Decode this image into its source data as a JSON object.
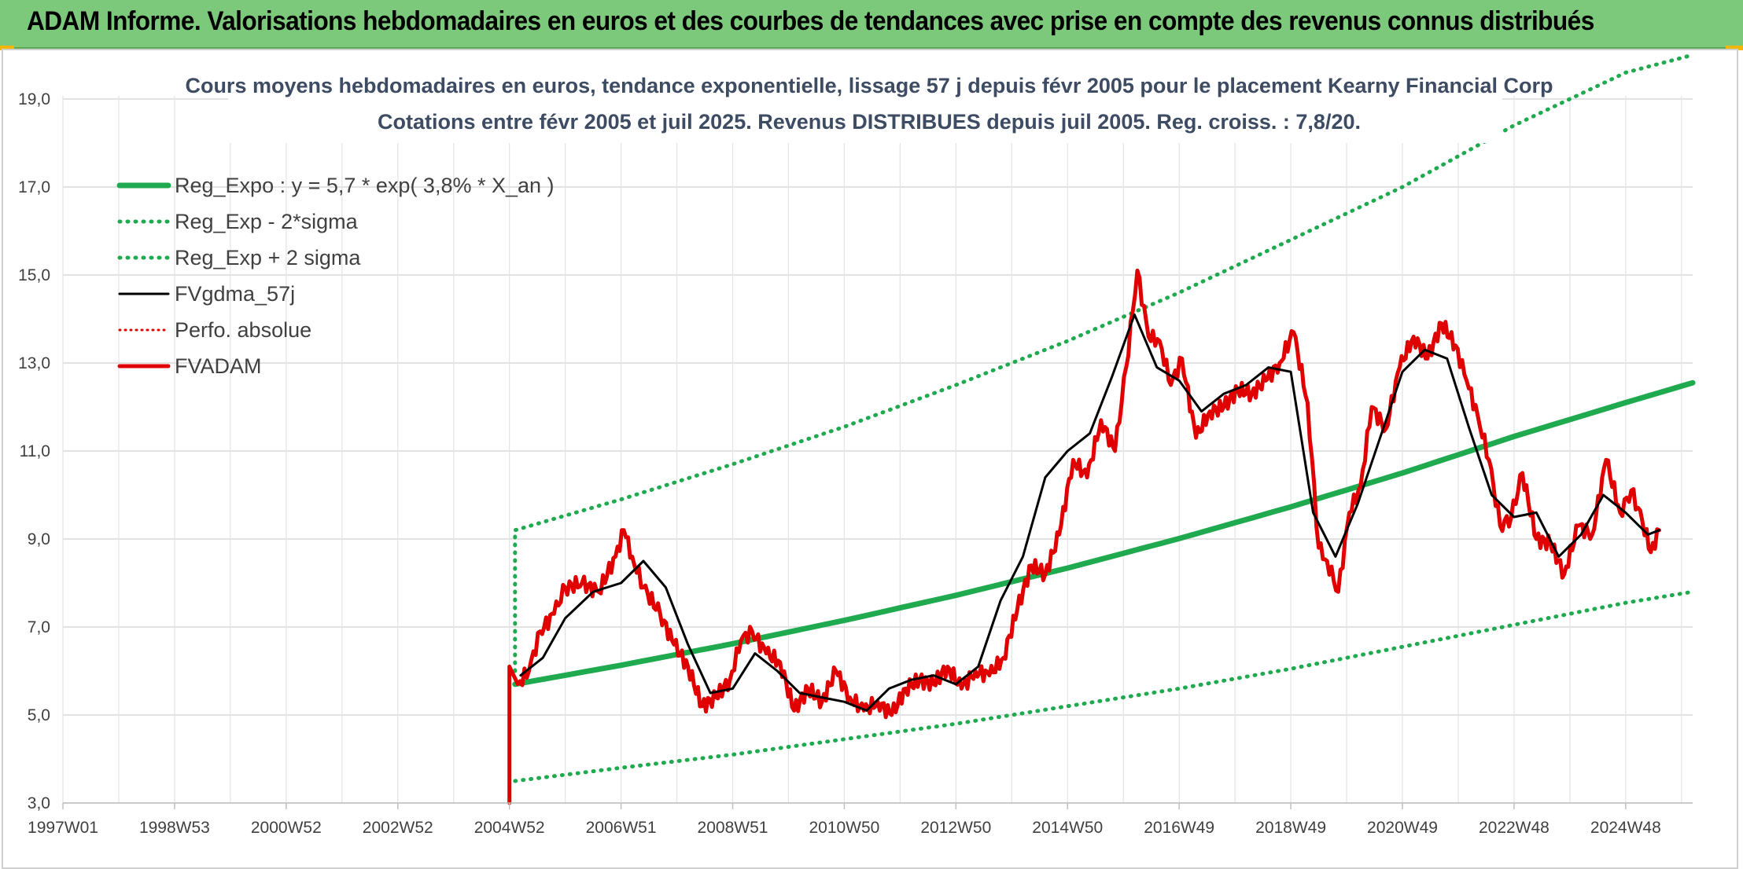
{
  "banner": {
    "title": "ADAM Informe. Valorisations hebdomadaires en euros et des courbes de tendances avec prise en compte des revenus connus distribués"
  },
  "colors": {
    "banner": "#7dc97b",
    "regression": "#1faa4f",
    "band": "#1faa4f",
    "smoothed": "#000000",
    "price": "#e00000",
    "perfo": "#e00000",
    "title": "#3d4b63"
  },
  "chart_data": {
    "type": "line",
    "title": "Cours moyens hebdomadaires en euros, tendance exponentielle, lissage 57 j depuis févr 2005 pour le placement Kearny Financial Corp",
    "subtitle": "Cotations entre févr 2005 et juil 2025. Revenus DISTRIBUES depuis juil 2005. Reg. croiss. : 7,8/20.",
    "xlabel": "",
    "ylabel": "",
    "ylim": [
      3,
      20
    ],
    "y_ticks": [
      "3,0",
      "5,0",
      "7,0",
      "9,0",
      "11,0",
      "13,0",
      "15,0",
      "17,0",
      "19,0"
    ],
    "x_ticks": [
      "1997W01",
      "1998W53",
      "2000W52",
      "2002W52",
      "2004W52",
      "2006W51",
      "2008W51",
      "2010W50",
      "2012W50",
      "2014W50",
      "2016W49",
      "2018W49",
      "2020W49",
      "2022W48",
      "2024W48"
    ],
    "x_tick_years": [
      1997.0,
      1999.0,
      2001.0,
      2003.0,
      2005.0,
      2007.0,
      2009.0,
      2011.0,
      2013.0,
      2015.0,
      2017.0,
      2019.0,
      2021.0,
      2023.0,
      2025.0
    ],
    "xlim": [
      1997.0,
      2026.2
    ],
    "grid": true,
    "legend_position": "top-left",
    "series": [
      {
        "name": "Reg_Expo : y = 5,7 * exp( 3,8% *  X_an )",
        "style": "solid-thick",
        "x": [
          2005.1,
          2007,
          2009,
          2011,
          2013,
          2015,
          2017,
          2019,
          2021,
          2023,
          2025,
          2026.2
        ],
        "y": [
          5.7,
          6.13,
          6.62,
          7.15,
          7.72,
          8.34,
          9.01,
          9.73,
          10.5,
          11.33,
          12.1,
          12.55
        ]
      },
      {
        "name": "Reg_Exp - 2*sigma",
        "style": "dotted",
        "x": [
          2005.1,
          2007,
          2009,
          2011,
          2013,
          2015,
          2017,
          2019,
          2021,
          2023,
          2025,
          2026.2
        ],
        "y": [
          3.5,
          3.8,
          4.1,
          4.45,
          4.8,
          5.2,
          5.6,
          6.05,
          6.55,
          7.05,
          7.55,
          7.8
        ]
      },
      {
        "name": "Reg_Exp + 2 sigma",
        "style": "dotted",
        "x": [
          2005.1,
          2005.1,
          2007,
          2009,
          2011,
          2013,
          2015,
          2017,
          2019,
          2021,
          2023,
          2025,
          2026.2
        ],
        "y": [
          6.0,
          9.2,
          9.9,
          10.7,
          11.55,
          12.5,
          13.5,
          14.6,
          15.8,
          17.0,
          18.4,
          19.6,
          20.0
        ]
      },
      {
        "name": "FVgdma_57j",
        "style": "solid",
        "x": [
          2005.2,
          2005.6,
          2006.0,
          2006.5,
          2007.0,
          2007.4,
          2007.8,
          2008.2,
          2008.6,
          2009.0,
          2009.4,
          2009.8,
          2010.2,
          2010.6,
          2011.0,
          2011.4,
          2011.8,
          2012.2,
          2012.6,
          2013.0,
          2013.4,
          2013.8,
          2014.2,
          2014.6,
          2015.0,
          2015.4,
          2015.8,
          2016.2,
          2016.6,
          2017.0,
          2017.4,
          2017.8,
          2018.2,
          2018.6,
          2019.0,
          2019.4,
          2019.8,
          2020.2,
          2020.6,
          2021.0,
          2021.4,
          2021.8,
          2022.2,
          2022.6,
          2023.0,
          2023.4,
          2023.8,
          2024.2,
          2024.6,
          2025.0,
          2025.4,
          2025.6
        ],
        "y": [
          5.9,
          6.3,
          7.2,
          7.8,
          8.0,
          8.5,
          7.9,
          6.6,
          5.5,
          5.6,
          6.4,
          6.0,
          5.5,
          5.4,
          5.3,
          5.1,
          5.6,
          5.8,
          5.9,
          5.7,
          6.1,
          7.6,
          8.6,
          10.4,
          11.0,
          11.4,
          12.7,
          14.1,
          12.9,
          12.6,
          11.9,
          12.3,
          12.5,
          12.9,
          12.8,
          9.6,
          8.6,
          9.8,
          11.3,
          12.8,
          13.3,
          13.1,
          11.5,
          10.0,
          9.5,
          9.6,
          8.6,
          9.1,
          10.0,
          9.6,
          9.1,
          9.2
        ]
      },
      {
        "name": "Perfo. absolue",
        "style": "dotted",
        "x": [],
        "y": []
      },
      {
        "name": "FVADAM",
        "style": "solid-thick",
        "x": [
          2005.0,
          2005.0,
          2005.15,
          2005.35,
          2005.55,
          2005.8,
          2006.0,
          2006.3,
          2006.6,
          2006.9,
          2007.05,
          2007.2,
          2007.4,
          2007.7,
          2007.95,
          2008.2,
          2008.45,
          2008.7,
          2008.95,
          2009.15,
          2009.35,
          2009.6,
          2009.85,
          2010.1,
          2010.35,
          2010.6,
          2010.85,
          2011.1,
          2011.35,
          2011.6,
          2011.85,
          2012.1,
          2012.35,
          2012.6,
          2012.85,
          2013.1,
          2013.35,
          2013.6,
          2013.85,
          2014.1,
          2014.35,
          2014.6,
          2014.85,
          2015.1,
          2015.35,
          2015.6,
          2015.85,
          2016.05,
          2016.25,
          2016.45,
          2016.65,
          2016.85,
          2017.05,
          2017.3,
          2017.55,
          2017.8,
          2018.05,
          2018.3,
          2018.55,
          2018.8,
          2019.05,
          2019.3,
          2019.5,
          2019.65,
          2019.85,
          2020.05,
          2020.25,
          2020.45,
          2020.7,
          2020.95,
          2021.2,
          2021.45,
          2021.7,
          2021.95,
          2022.15,
          2022.35,
          2022.55,
          2022.75,
          2022.95,
          2023.15,
          2023.4,
          2023.65,
          2023.9,
          2024.15,
          2024.4,
          2024.65,
          2024.9,
          2025.1,
          2025.3,
          2025.45,
          2025.6
        ],
        "y": [
          3.0,
          6.1,
          5.7,
          6.0,
          6.9,
          7.3,
          7.9,
          8.0,
          7.8,
          8.6,
          9.2,
          8.6,
          7.9,
          7.3,
          6.6,
          6.1,
          5.2,
          5.4,
          5.8,
          6.7,
          6.9,
          6.4,
          6.2,
          5.1,
          5.6,
          5.3,
          6.0,
          5.4,
          5.1,
          5.3,
          5.0,
          5.6,
          5.8,
          5.7,
          6.1,
          5.6,
          6.0,
          5.9,
          6.3,
          7.4,
          8.4,
          8.2,
          9.1,
          10.8,
          10.4,
          11.7,
          11.0,
          12.9,
          15.1,
          13.6,
          13.5,
          12.5,
          13.1,
          11.3,
          11.9,
          12.0,
          12.4,
          12.3,
          12.6,
          13.0,
          13.7,
          12.1,
          8.8,
          8.5,
          7.8,
          9.6,
          10.2,
          12.0,
          11.5,
          12.9,
          13.6,
          13.1,
          13.9,
          13.4,
          12.6,
          11.8,
          10.8,
          9.3,
          9.5,
          10.5,
          9.0,
          8.9,
          8.2,
          9.3,
          9.1,
          10.8,
          9.6,
          10.1,
          9.4,
          8.7,
          9.2
        ]
      }
    ]
  }
}
